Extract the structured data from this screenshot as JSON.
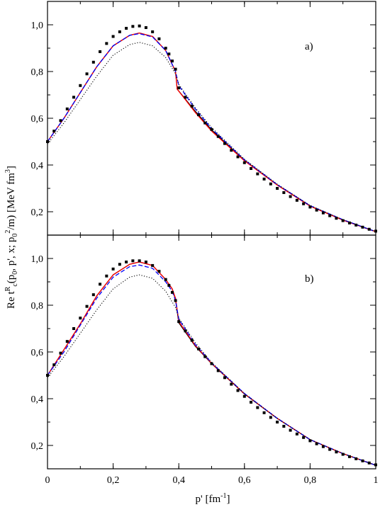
{
  "figure": {
    "xlabel_main": "p' [fm",
    "xlabel_sup": "-1",
    "xlabel_end": "]",
    "ylabel_parts": [
      {
        "t": "Re t",
        "s": "n"
      },
      {
        "t": "R",
        "s": "sup"
      },
      {
        "t": "c",
        "s": "sub"
      },
      {
        "t": "(p",
        "s": "n"
      },
      {
        "t": "0",
        "s": "sub"
      },
      {
        "t": ", p', x; p",
        "s": "n"
      },
      {
        "t": "0",
        "s": "sub"
      },
      {
        "t": "2",
        "s": "sup"
      },
      {
        "t": "/m) [MeV fm",
        "s": "n"
      },
      {
        "t": "3",
        "s": "sup"
      },
      {
        "t": "]",
        "s": "n"
      }
    ]
  },
  "chart_data": [
    {
      "type": "line",
      "panel_label": "a)",
      "xlim": [
        0,
        1
      ],
      "ylim": [
        0.1,
        1.1
      ],
      "x_ticks": [
        "0",
        "0,2",
        "0,4",
        "0,6",
        "0,8",
        "1"
      ],
      "y_ticks": [
        "0,2",
        "0,4",
        "0,6",
        "0,8",
        "1,0"
      ],
      "series": [
        {
          "style": "solid",
          "color": "#000000",
          "x": [
            0,
            0.05,
            0.1,
            0.15,
            0.2,
            0.25,
            0.28,
            0.32,
            0.36,
            0.39,
            0.395,
            0.45,
            0.5,
            0.6,
            0.7,
            0.8,
            0.9,
            1.0
          ],
          "y": [
            0.5,
            0.6,
            0.71,
            0.82,
            0.91,
            0.955,
            0.965,
            0.95,
            0.89,
            0.8,
            0.725,
            0.63,
            0.55,
            0.42,
            0.315,
            0.225,
            0.165,
            0.115
          ]
        },
        {
          "style": "solid",
          "color": "#ff0000",
          "x": [
            0,
            0.05,
            0.1,
            0.15,
            0.2,
            0.25,
            0.28,
            0.32,
            0.36,
            0.39,
            0.395,
            0.45,
            0.5,
            0.6,
            0.7,
            0.8,
            0.9,
            1.0
          ],
          "y": [
            0.5,
            0.6,
            0.71,
            0.82,
            0.91,
            0.955,
            0.965,
            0.95,
            0.89,
            0.8,
            0.725,
            0.625,
            0.545,
            0.418,
            0.314,
            0.224,
            0.164,
            0.115
          ]
        },
        {
          "style": "dashed",
          "color": "#0000ff",
          "x": [
            0,
            0.05,
            0.1,
            0.15,
            0.2,
            0.25,
            0.28,
            0.32,
            0.36,
            0.39,
            0.4,
            0.45,
            0.5,
            0.6,
            0.7,
            0.8,
            0.9,
            1.0
          ],
          "y": [
            0.5,
            0.6,
            0.71,
            0.82,
            0.91,
            0.955,
            0.962,
            0.948,
            0.89,
            0.8,
            0.74,
            0.64,
            0.555,
            0.422,
            0.316,
            0.226,
            0.166,
            0.115
          ]
        },
        {
          "style": "dotted",
          "color": "#000000",
          "x": [
            0,
            0.05,
            0.1,
            0.15,
            0.2,
            0.25,
            0.28,
            0.32,
            0.36,
            0.39,
            0.4,
            0.45,
            0.5,
            0.6,
            0.7,
            0.8,
            0.9,
            1.0
          ],
          "y": [
            0.49,
            0.58,
            0.68,
            0.78,
            0.87,
            0.915,
            0.925,
            0.91,
            0.86,
            0.79,
            0.745,
            0.645,
            0.56,
            0.425,
            0.318,
            0.227,
            0.166,
            0.115
          ]
        },
        {
          "style": "squares",
          "color": "#000000",
          "x": [
            0,
            0.02,
            0.04,
            0.06,
            0.08,
            0.1,
            0.12,
            0.14,
            0.16,
            0.18,
            0.2,
            0.22,
            0.24,
            0.26,
            0.28,
            0.3,
            0.32,
            0.34,
            0.36,
            0.37,
            0.38,
            0.39,
            0.4,
            0.42,
            0.44,
            0.46,
            0.48,
            0.5,
            0.52,
            0.54,
            0.56,
            0.58,
            0.6,
            0.62,
            0.64,
            0.66,
            0.68,
            0.7,
            0.72,
            0.74,
            0.76,
            0.78,
            0.8,
            0.82,
            0.84,
            0.86,
            0.88,
            0.9,
            0.92,
            0.94,
            0.96,
            0.98,
            1.0
          ],
          "y": [
            0.5,
            0.545,
            0.59,
            0.64,
            0.69,
            0.74,
            0.79,
            0.84,
            0.885,
            0.92,
            0.95,
            0.97,
            0.985,
            0.993,
            0.995,
            0.988,
            0.97,
            0.94,
            0.9,
            0.875,
            0.845,
            0.81,
            0.73,
            0.69,
            0.652,
            0.615,
            0.58,
            0.552,
            0.522,
            0.492,
            0.463,
            0.435,
            0.41,
            0.385,
            0.362,
            0.34,
            0.319,
            0.3,
            0.282,
            0.265,
            0.249,
            0.234,
            0.22,
            0.207,
            0.195,
            0.183,
            0.172,
            0.162,
            0.152,
            0.143,
            0.134,
            0.125,
            0.117
          ]
        }
      ]
    },
    {
      "type": "line",
      "panel_label": "b)",
      "xlim": [
        0,
        1
      ],
      "ylim": [
        0.1,
        1.1
      ],
      "x_ticks": [
        "0",
        "0,2",
        "0,4",
        "0,6",
        "0,8",
        "1"
      ],
      "y_ticks": [
        "0,2",
        "0,4",
        "0,6",
        "0,8",
        "1,0"
      ],
      "series": [
        {
          "style": "solid",
          "color": "#000000",
          "x": [
            0,
            0.05,
            0.1,
            0.15,
            0.2,
            0.25,
            0.28,
            0.32,
            0.36,
            0.38,
            0.39,
            0.4,
            0.45,
            0.5,
            0.6,
            0.7,
            0.8,
            0.9,
            1.0
          ],
          "y": [
            0.5,
            0.61,
            0.72,
            0.84,
            0.93,
            0.975,
            0.985,
            0.97,
            0.91,
            0.87,
            0.825,
            0.725,
            0.625,
            0.55,
            0.42,
            0.315,
            0.225,
            0.165,
            0.115
          ]
        },
        {
          "style": "solid",
          "color": "#ff0000",
          "x": [
            0,
            0.05,
            0.1,
            0.15,
            0.2,
            0.25,
            0.28,
            0.32,
            0.36,
            0.38,
            0.39,
            0.4,
            0.45,
            0.5,
            0.6,
            0.7,
            0.8,
            0.9,
            1.0
          ],
          "y": [
            0.5,
            0.61,
            0.72,
            0.84,
            0.93,
            0.975,
            0.985,
            0.97,
            0.91,
            0.87,
            0.83,
            0.73,
            0.628,
            0.551,
            0.421,
            0.316,
            0.225,
            0.165,
            0.115
          ]
        },
        {
          "style": "dashed",
          "color": "#0000ff",
          "x": [
            0,
            0.05,
            0.1,
            0.15,
            0.2,
            0.25,
            0.28,
            0.32,
            0.36,
            0.38,
            0.39,
            0.4,
            0.45,
            0.5,
            0.6,
            0.7,
            0.8,
            0.9,
            1.0
          ],
          "y": [
            0.5,
            0.6,
            0.715,
            0.83,
            0.92,
            0.965,
            0.972,
            0.958,
            0.9,
            0.86,
            0.82,
            0.74,
            0.632,
            0.553,
            0.422,
            0.316,
            0.225,
            0.165,
            0.115
          ]
        },
        {
          "style": "dotted",
          "color": "#000000",
          "x": [
            0,
            0.05,
            0.1,
            0.15,
            0.2,
            0.25,
            0.28,
            0.32,
            0.36,
            0.39,
            0.4,
            0.45,
            0.5,
            0.6,
            0.7,
            0.8,
            0.9,
            1.0
          ],
          "y": [
            0.49,
            0.58,
            0.68,
            0.78,
            0.87,
            0.92,
            0.93,
            0.915,
            0.86,
            0.79,
            0.745,
            0.64,
            0.555,
            0.422,
            0.316,
            0.225,
            0.165,
            0.115
          ]
        },
        {
          "style": "squares",
          "color": "#000000",
          "x": [
            0,
            0.02,
            0.04,
            0.06,
            0.08,
            0.1,
            0.12,
            0.14,
            0.16,
            0.18,
            0.2,
            0.22,
            0.24,
            0.26,
            0.28,
            0.3,
            0.32,
            0.34,
            0.36,
            0.37,
            0.38,
            0.39,
            0.4,
            0.42,
            0.44,
            0.46,
            0.48,
            0.5,
            0.52,
            0.54,
            0.56,
            0.58,
            0.6,
            0.62,
            0.64,
            0.66,
            0.68,
            0.7,
            0.72,
            0.74,
            0.76,
            0.78,
            0.8,
            0.82,
            0.84,
            0.86,
            0.88,
            0.9,
            0.92,
            0.94,
            0.96,
            0.98,
            1.0
          ],
          "y": [
            0.5,
            0.545,
            0.595,
            0.645,
            0.7,
            0.745,
            0.795,
            0.845,
            0.89,
            0.925,
            0.955,
            0.975,
            0.985,
            0.99,
            0.99,
            0.985,
            0.97,
            0.945,
            0.91,
            0.885,
            0.855,
            0.82,
            0.73,
            0.69,
            0.65,
            0.613,
            0.58,
            0.55,
            0.52,
            0.49,
            0.462,
            0.435,
            0.41,
            0.385,
            0.362,
            0.34,
            0.32,
            0.3,
            0.282,
            0.265,
            0.249,
            0.234,
            0.22,
            0.207,
            0.195,
            0.183,
            0.172,
            0.162,
            0.152,
            0.143,
            0.134,
            0.125,
            0.117
          ]
        }
      ]
    }
  ]
}
